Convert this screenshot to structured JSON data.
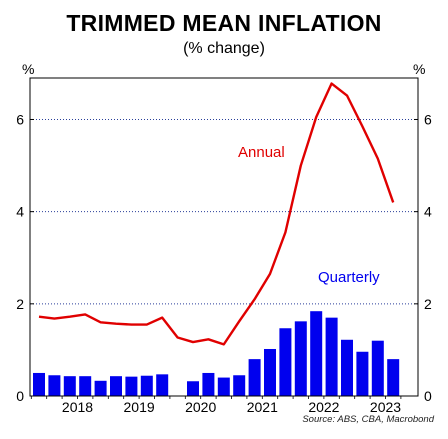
{
  "title": "TRIMMED MEAN INFLATION",
  "subtitle": "(% change)",
  "source": "Source: ABS, CBA, Macrobond",
  "chart_data": {
    "type": "bar+line",
    "title": "TRIMMED MEAN INFLATION",
    "subtitle": "(% change)",
    "ylabel_left": "%",
    "ylabel_right": "%",
    "ylim": [
      0,
      6.9
    ],
    "yticks": [
      0,
      2,
      4,
      6
    ],
    "x_tick_labels": [
      "2018",
      "2019",
      "2020",
      "2021",
      "2022",
      "2023"
    ],
    "x_start": "2017-Q4",
    "grid": "horizontal dotted",
    "colors": {
      "bars": "#0000ee",
      "line": "#e00000",
      "gridline": "#2a3f9a"
    },
    "series": [
      {
        "name": "Quarterly",
        "type": "bar",
        "quarters": [
          "2017-Q4",
          "2018-Q1",
          "2018-Q2",
          "2018-Q3",
          "2018-Q4",
          "2019-Q1",
          "2019-Q2",
          "2019-Q3",
          "2019-Q4",
          "2020-Q1",
          "2020-Q2",
          "2020-Q3",
          "2020-Q4",
          "2021-Q1",
          "2021-Q2",
          "2021-Q3",
          "2021-Q4",
          "2022-Q1",
          "2022-Q2",
          "2022-Q3",
          "2022-Q4",
          "2023-Q1",
          "2023-Q2",
          "2023-Q3"
        ],
        "values": [
          0.5,
          0.45,
          0.43,
          0.43,
          0.33,
          0.43,
          0.42,
          0.44,
          0.47,
          0.0,
          0.32,
          0.5,
          0.4,
          0.45,
          0.8,
          1.02,
          1.47,
          1.62,
          1.84,
          1.7,
          1.22,
          0.96,
          1.2,
          0.8
        ]
      },
      {
        "name": "Annual",
        "type": "line",
        "quarters": [
          "2017-Q4",
          "2018-Q1",
          "2018-Q2",
          "2018-Q3",
          "2018-Q4",
          "2019-Q1",
          "2019-Q2",
          "2019-Q3",
          "2019-Q4",
          "2020-Q1",
          "2020-Q2",
          "2020-Q3",
          "2020-Q4",
          "2021-Q1",
          "2021-Q2",
          "2021-Q3",
          "2021-Q4",
          "2022-Q1",
          "2022-Q2",
          "2022-Q3",
          "2022-Q4",
          "2023-Q1",
          "2023-Q2",
          "2023-Q3"
        ],
        "values": [
          1.72,
          1.68,
          1.72,
          1.77,
          1.6,
          1.57,
          1.55,
          1.55,
          1.7,
          1.27,
          1.17,
          1.23,
          1.12,
          1.62,
          2.1,
          2.65,
          3.55,
          5.0,
          6.05,
          6.78,
          6.52,
          5.85,
          5.15,
          4.2
        ]
      }
    ]
  }
}
